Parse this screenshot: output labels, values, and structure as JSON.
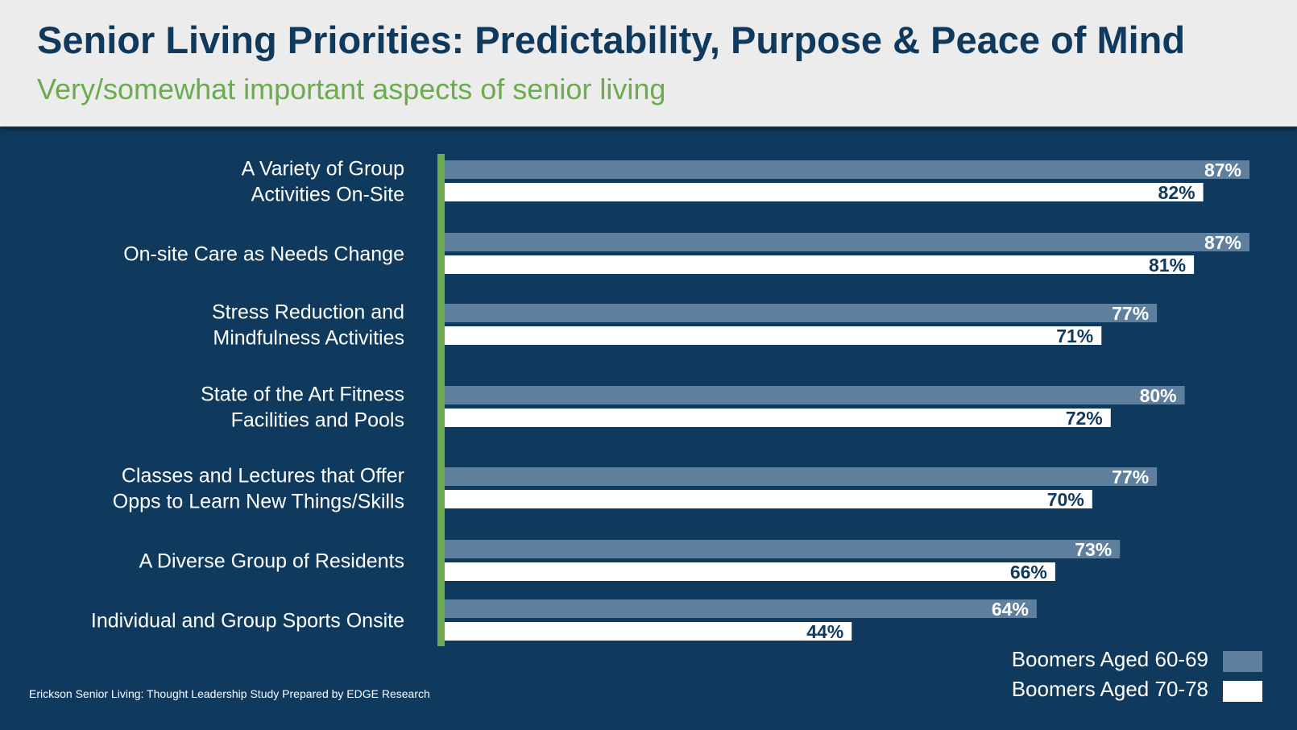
{
  "title": "Senior Living Priorities: Predictability, Purpose & Peace of Mind",
  "subtitle": "Very/somewhat important aspects of senior living",
  "source": "Erickson Senior Living: Thought Leadership Study Prepared by EDGE Research",
  "colors": {
    "background": "#0f3a5e",
    "header_bg": "#ececec",
    "title": "#0f3a5e",
    "subtitle": "#6cab4f",
    "axis_line": "#6cab4f",
    "series_60_69": "#5f7f9e",
    "series_70_78": "#ffffff"
  },
  "chart_data": {
    "type": "bar",
    "orientation": "horizontal",
    "categories": [
      [
        "A Variety of Group",
        "Activities On-Site"
      ],
      [
        "On-site Care as Needs Change"
      ],
      [
        "Stress Reduction and",
        "Mindfulness Activities"
      ],
      [
        "State of the Art Fitness",
        "Facilities and Pools"
      ],
      [
        "Classes and Lectures that Offer",
        "Opps to Learn New Things/Skills"
      ],
      [
        "A Diverse Group of Residents"
      ],
      [
        "Individual and Group Sports Onsite"
      ]
    ],
    "series": [
      {
        "name": "Boomers Aged 60-69",
        "values": [
          87,
          87,
          77,
          80,
          77,
          73,
          64
        ],
        "labels": [
          "87%",
          "87%",
          "77%",
          "80%",
          "77%",
          "73%",
          "64%"
        ]
      },
      {
        "name": "Boomers Aged 70-78",
        "values": [
          82,
          81,
          71,
          72,
          70,
          66,
          44
        ],
        "labels": [
          "82%",
          "81%",
          "71%",
          "72%",
          "70%",
          "66%",
          "44%"
        ]
      }
    ],
    "value_unit": "%",
    "xlim": [
      0,
      87
    ],
    "legend_position": "bottom-right",
    "grid": false
  }
}
